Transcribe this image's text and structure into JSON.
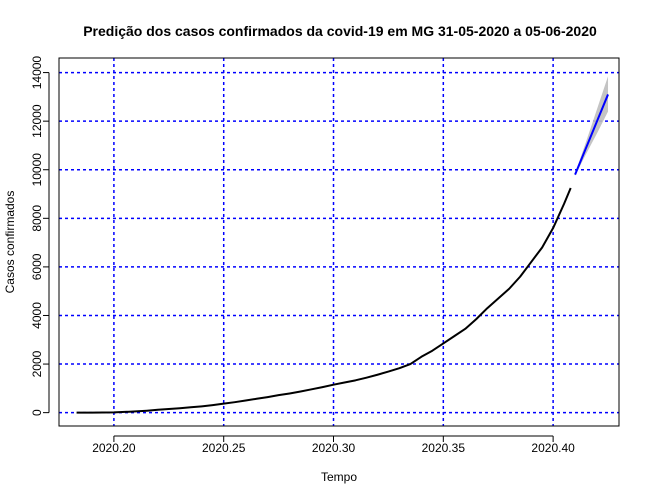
{
  "chart_data": {
    "type": "line",
    "title": "Predição dos casos confirmados da covid-19 em MG 31-05-2020 a 05-06-2020",
    "xlabel": "Tempo",
    "ylabel": "Casos confirmados",
    "xlim": [
      2020.175,
      2020.43
    ],
    "ylim": [
      -550,
      14600
    ],
    "x_ticks": [
      2020.2,
      2020.25,
      2020.3,
      2020.35,
      2020.4
    ],
    "x_tick_labels": [
      "2020.20",
      "2020.25",
      "2020.30",
      "2020.35",
      "2020.40"
    ],
    "y_ticks": [
      0,
      2000,
      4000,
      6000,
      8000,
      10000,
      12000,
      14000
    ],
    "y_tick_labels": [
      "0",
      "2000",
      "4000",
      "6000",
      "8000",
      "10000",
      "12000",
      "14000"
    ],
    "grid": true,
    "grid_color": "#0000ff",
    "series": [
      {
        "color": "#000000",
        "x": [
          2020.183,
          2020.19,
          2020.2,
          2020.205,
          2020.21,
          2020.215,
          2020.22,
          2020.225,
          2020.23,
          2020.235,
          2020.24,
          2020.245,
          2020.25,
          2020.255,
          2020.26,
          2020.265,
          2020.27,
          2020.275,
          2020.28,
          2020.285,
          2020.29,
          2020.295,
          2020.3,
          2020.305,
          2020.31,
          2020.315,
          2020.32,
          2020.325,
          2020.33,
          2020.335,
          2020.34,
          2020.345,
          2020.35,
          2020.355,
          2020.36,
          2020.365,
          2020.37,
          2020.375,
          2020.38,
          2020.385,
          2020.39,
          2020.395,
          2020.4,
          2020.405,
          2020.408
        ],
        "y": [
          0,
          0,
          10,
          30,
          50,
          80,
          120,
          150,
          180,
          220,
          260,
          310,
          370,
          430,
          500,
          570,
          640,
          720,
          790,
          870,
          960,
          1050,
          1150,
          1240,
          1330,
          1440,
          1560,
          1690,
          1830,
          2000,
          2300,
          2550,
          2850,
          3150,
          3450,
          3850,
          4300,
          4700,
          5100,
          5600,
          6200,
          6800,
          7600,
          8600,
          9250
        ]
      },
      {
        "color": "#0000ff",
        "x": [
          2020.41,
          2020.415,
          2020.42,
          2020.425
        ],
        "y": [
          9800,
          10900,
          12000,
          13100
        ]
      }
    ],
    "confidence_band": {
      "color": "#bebebe",
      "x": [
        2020.41,
        2020.415,
        2020.42,
        2020.425
      ],
      "upper": [
        9850,
        11150,
        12500,
        13850
      ],
      "lower": [
        9750,
        10650,
        11500,
        12400
      ]
    }
  }
}
